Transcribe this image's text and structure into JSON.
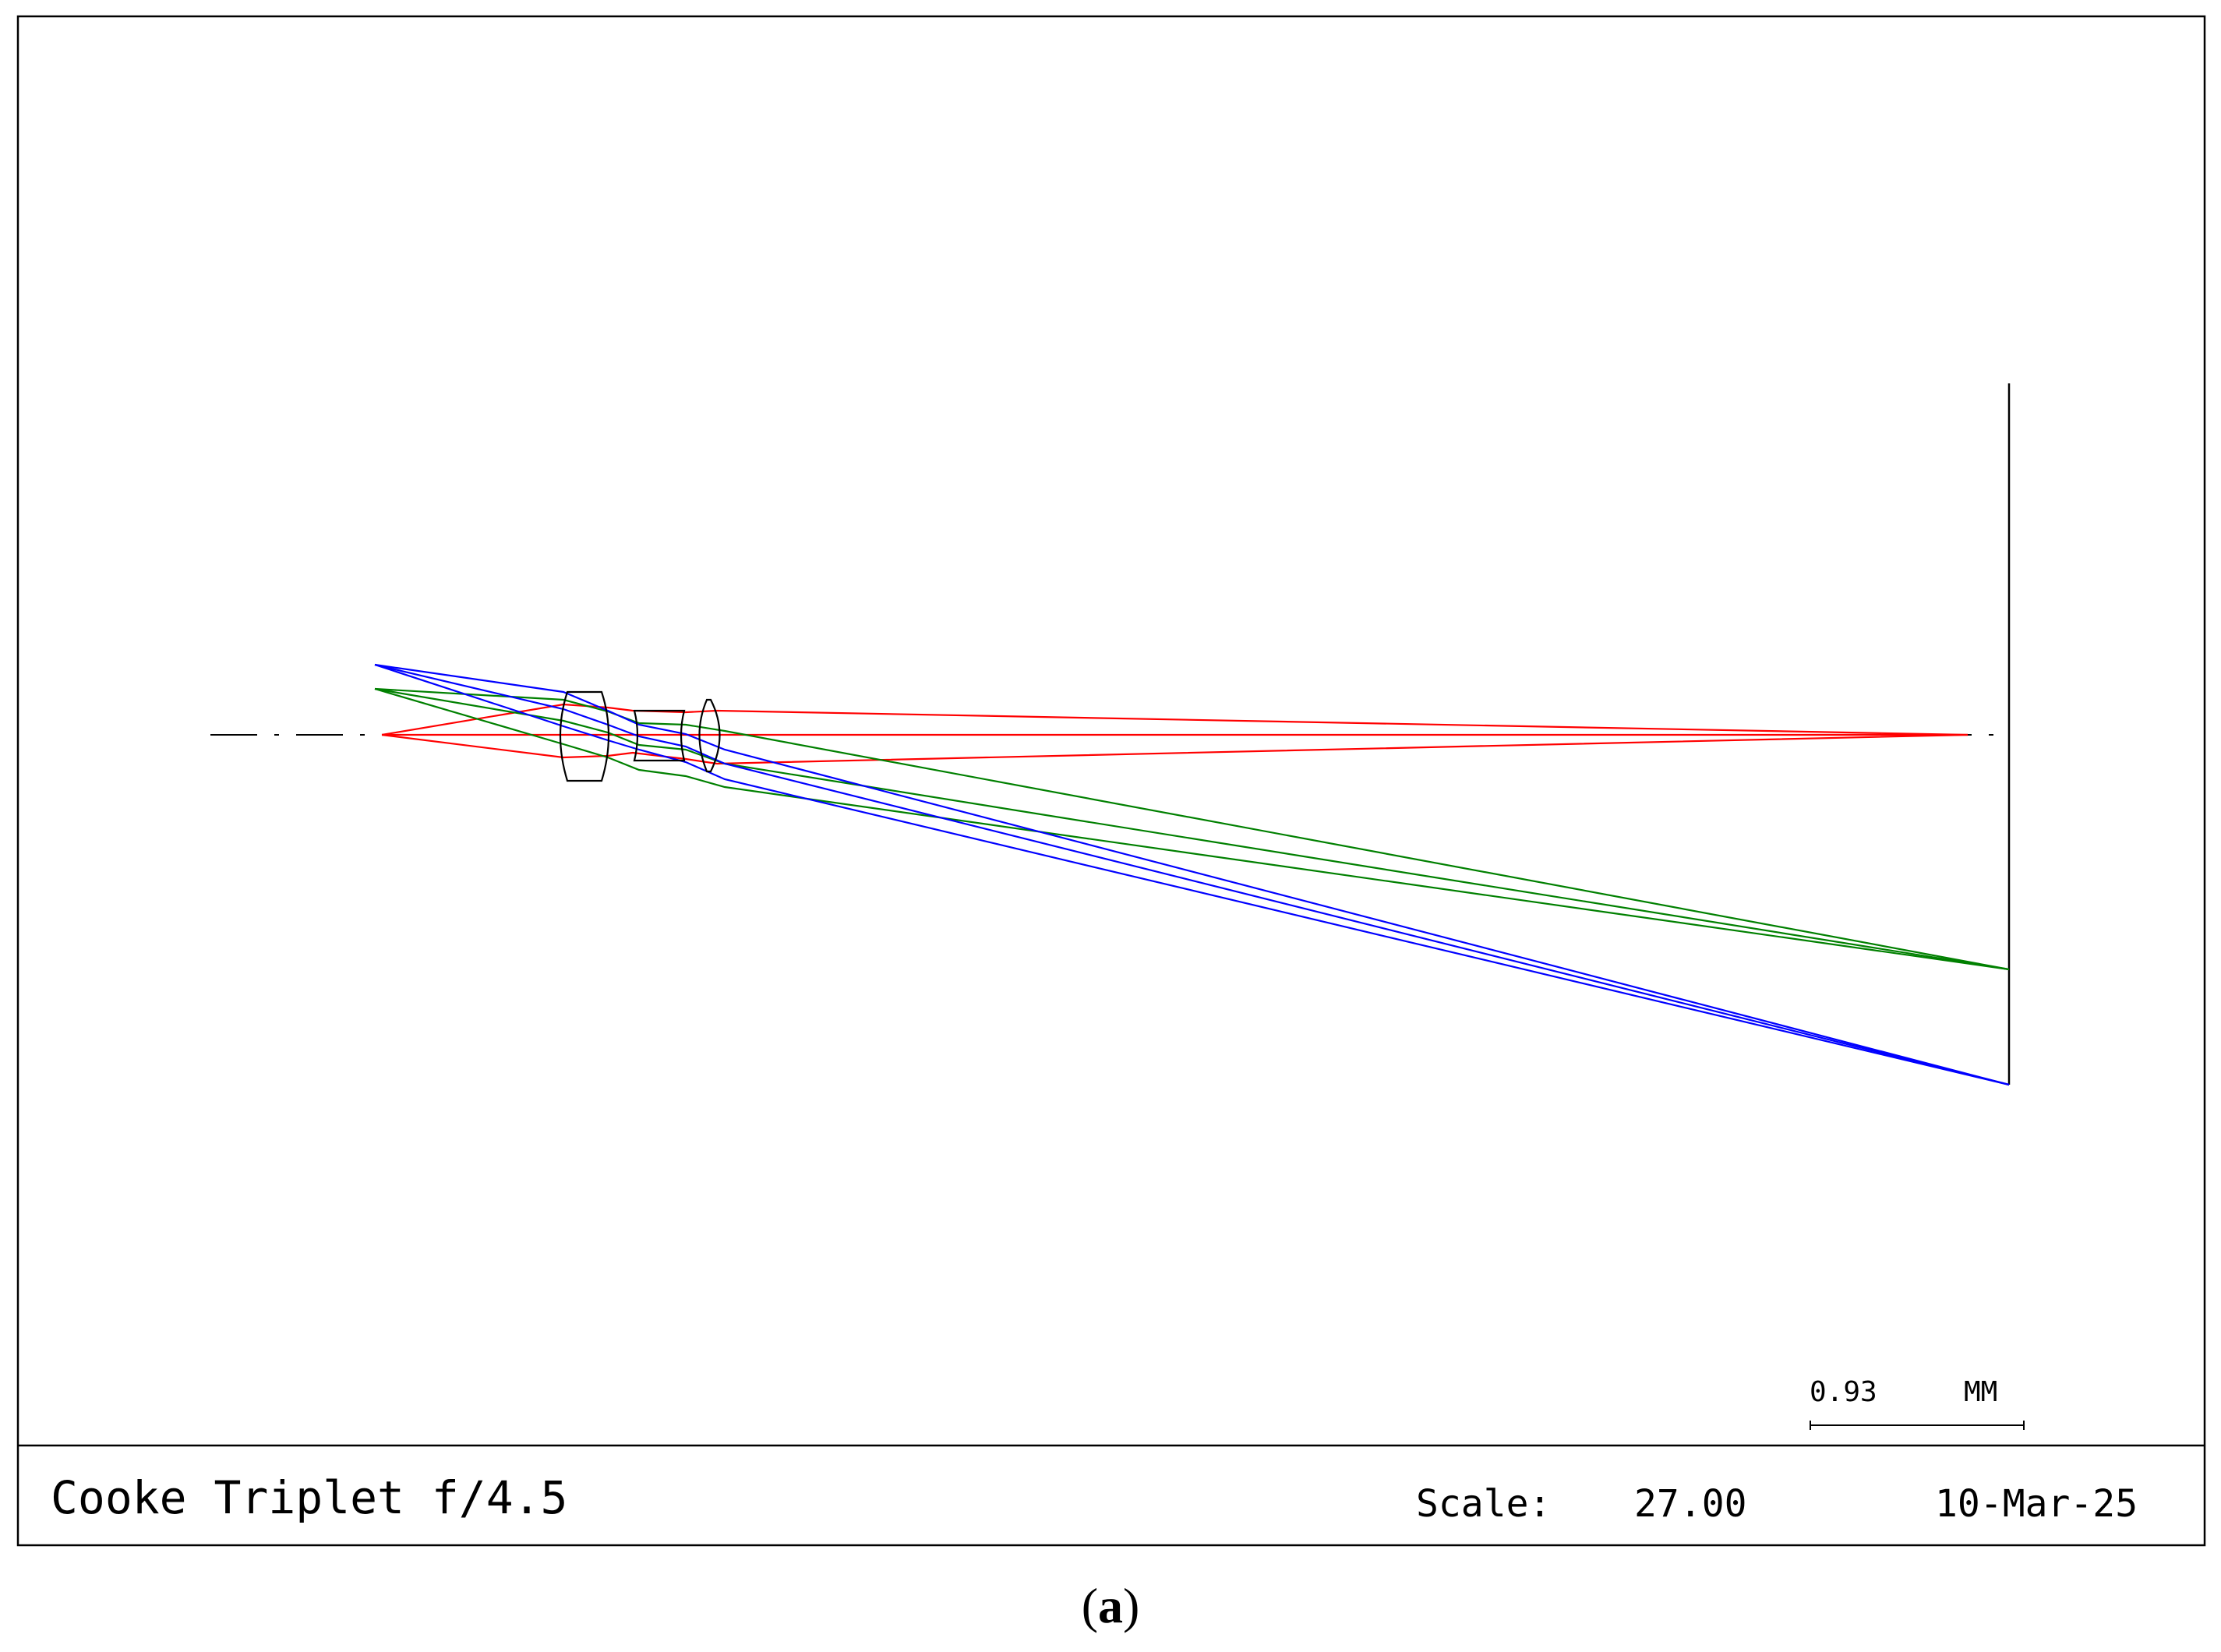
{
  "footer": {
    "title": "Cooke Triplet f/4.5",
    "scale_label": "Scale:",
    "scale_value": "27.00",
    "date": "10-Mar-25"
  },
  "scale_bar": {
    "value": "0.93",
    "unit": "MM"
  },
  "caption": {
    "open": "(",
    "letter": "a",
    "close": ")"
  },
  "colors": {
    "axial_field": "#ff0000",
    "mid_field": "#008000",
    "full_field": "#0000ff",
    "lens_outline": "#000000"
  }
}
